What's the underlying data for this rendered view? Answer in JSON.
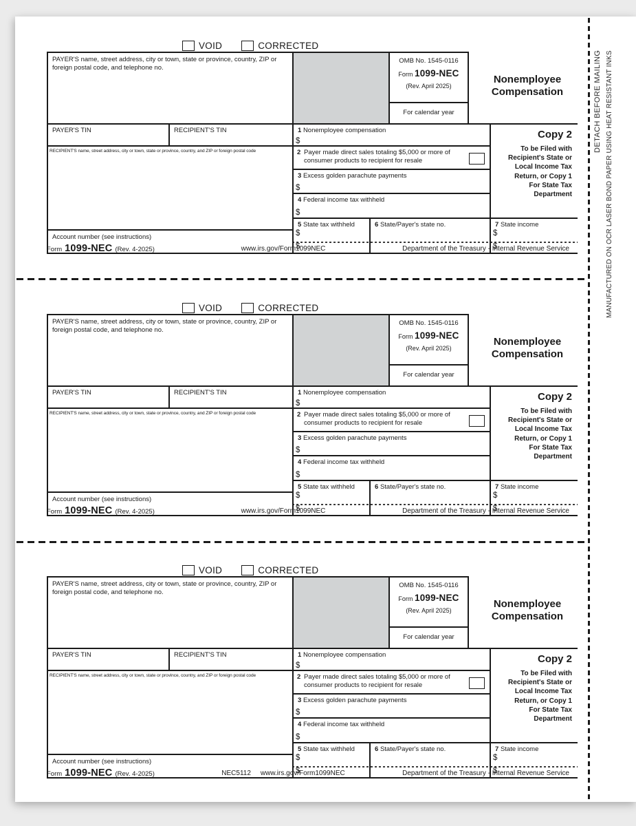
{
  "form": {
    "void_label": "VOID",
    "corrected_label": "CORRECTED",
    "payer_info_label": "PAYER'S name, street address, city or town, state or province, country, ZIP or foreign postal code, and telephone no.",
    "payer_tin_label": "PAYER'S TIN",
    "recipient_tin_label": "RECIPIENT'S TIN",
    "recipient_info_label": "RECIPIENT'S name, street address, city or town, state or province, country, and ZIP or foreign postal code",
    "account_label": "Account number (see instructions)",
    "omb_number": "OMB No. 1545-0116",
    "form_word": "Form",
    "form_number": "1099-NEC",
    "revision": "(Rev. April 2025)",
    "calendar_year_label": "For calendar year",
    "title_line1": "Nonemployee",
    "title_line2": "Compensation",
    "copy_label": "Copy 2",
    "copy_instructions": "To be Filed with\nRecipient's State or\nLocal Income Tax\nReturn, or Copy 1\nFor State Tax\nDepartment",
    "dollar": "$",
    "box1": {
      "num": "1",
      "label": "Nonemployee compensation"
    },
    "box2": {
      "num": "2",
      "label": "Payer made direct sales totaling $5,000 or more of consumer products to recipient for resale"
    },
    "box3": {
      "num": "3",
      "label": "Excess golden parachute payments"
    },
    "box4": {
      "num": "4",
      "label": "Federal income tax withheld"
    },
    "box5": {
      "num": "5",
      "label": "State tax withheld"
    },
    "box6": {
      "num": "6",
      "label": "State/Payer's state no."
    },
    "box7": {
      "num": "7",
      "label": "State income"
    },
    "footer": {
      "form_word": "Form",
      "form_number": "1099-NEC",
      "revision": "(Rev. 4-2025)",
      "url": "www.irs.gov/Form1099NEC",
      "department": "Department of the Treasury - Internal Revenue Service"
    }
  },
  "copies": [
    {
      "printer_code": ""
    },
    {
      "printer_code": ""
    },
    {
      "printer_code": "NEC5112"
    }
  ],
  "side_strip": {
    "line1": "DETACH BEFORE MAILING",
    "line2": "MANUFACTURED ON OCR LASER BOND PAPER USING HEAT RESISTANT INKS"
  },
  "colors": {
    "shaded_box": "#d1d3d4",
    "line": "#1a1a1a",
    "background": "#ebebeb"
  }
}
